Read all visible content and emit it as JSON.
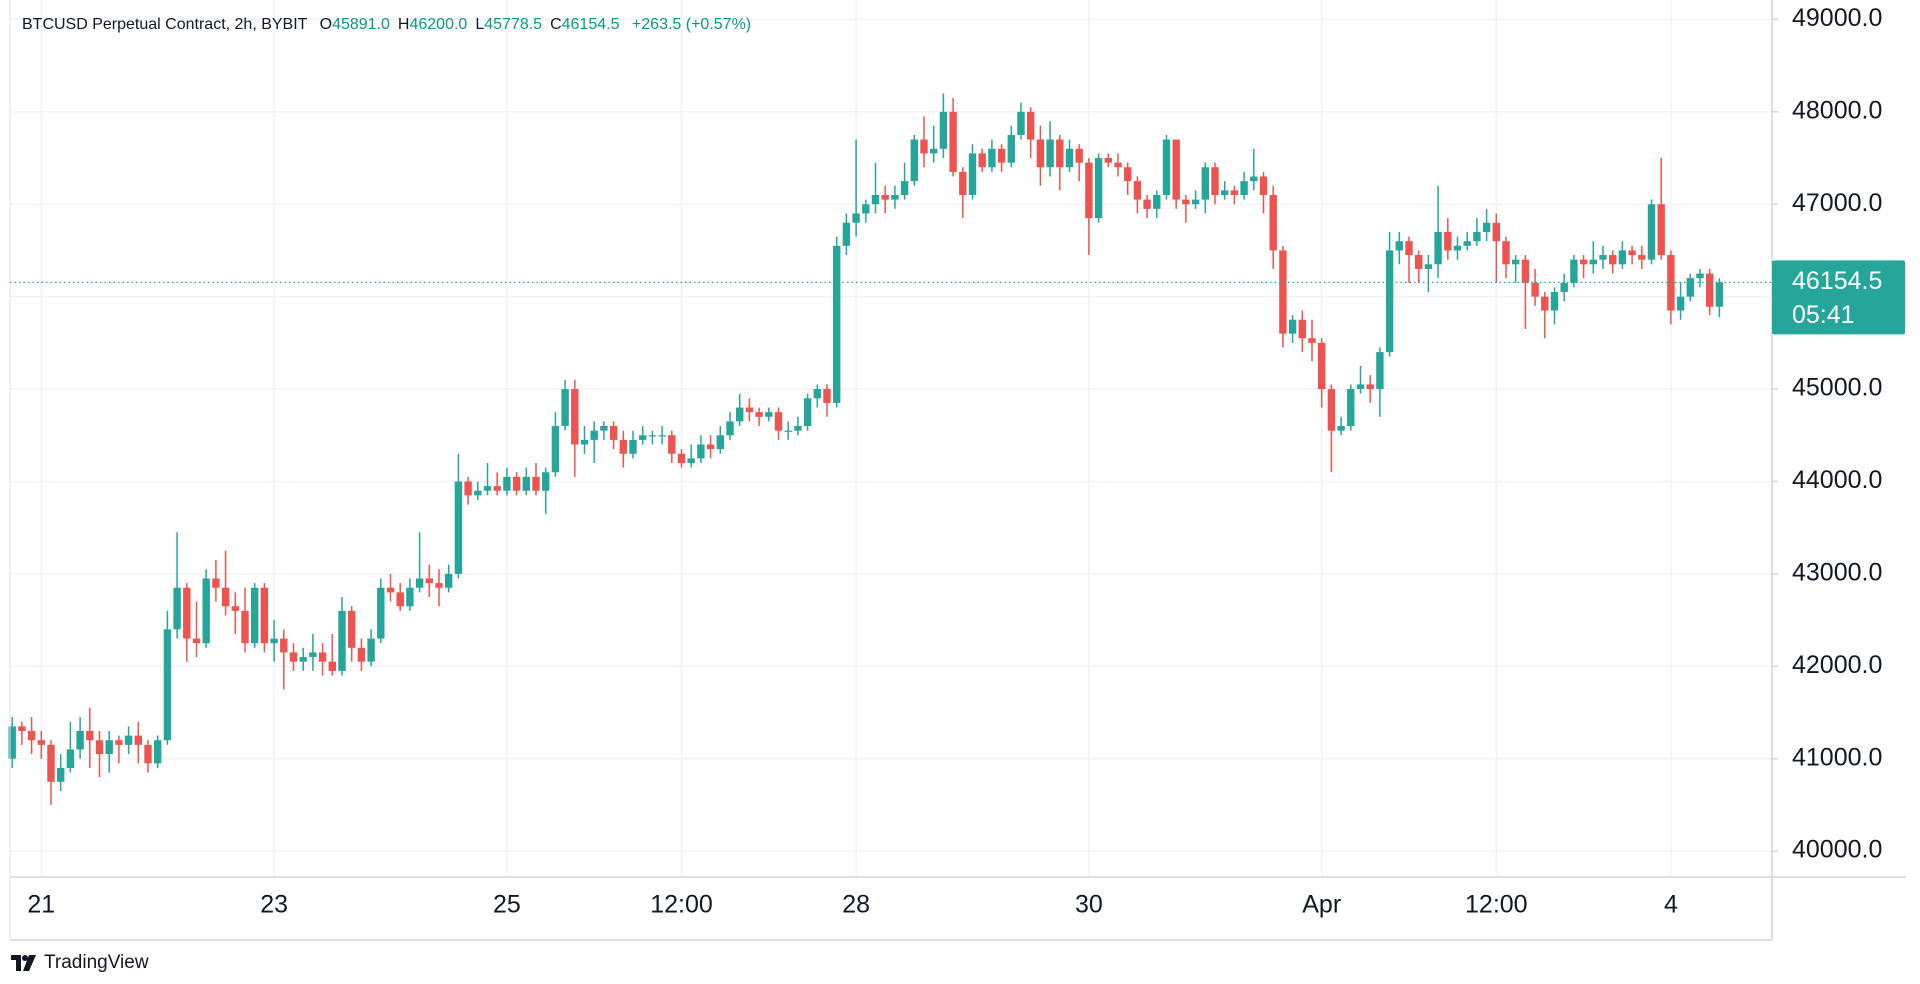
{
  "header": {
    "symbol": "BTCUSD Perpetual Contract, 2h, BYBIT",
    "ohlc": [
      {
        "key": "O",
        "text": "45891.0"
      },
      {
        "key": "H",
        "text": "46200.0"
      },
      {
        "key": "L",
        "text": "45778.5"
      },
      {
        "key": "C",
        "text": "46154.5"
      }
    ],
    "change": "+263.5 (+0.57%)"
  },
  "footer": {
    "brand": "TradingView"
  },
  "chart_data": {
    "type": "candlestick",
    "categories": [
      null,
      null,
      null,
      "21",
      null,
      null,
      null,
      null,
      null,
      null,
      null,
      null,
      null,
      null,
      null,
      null,
      null,
      null,
      null,
      null,
      null,
      null,
      null,
      null,
      null,
      null,
      null,
      "23",
      null,
      null,
      null,
      null,
      null,
      null,
      null,
      null,
      null,
      null,
      null,
      null,
      null,
      null,
      null,
      null,
      null,
      null,
      null,
      null,
      null,
      null,
      null,
      "25",
      null,
      null,
      null,
      null,
      null,
      null,
      null,
      null,
      null,
      null,
      null,
      null,
      null,
      null,
      null,
      null,
      null,
      "12:00",
      null,
      null,
      null,
      null,
      null,
      null,
      null,
      null,
      null,
      null,
      null,
      null,
      null,
      null,
      null,
      null,
      null,
      "28",
      null,
      null,
      null,
      null,
      null,
      null,
      null,
      null,
      null,
      null,
      null,
      null,
      null,
      null,
      null,
      null,
      null,
      null,
      null,
      null,
      null,
      null,
      null,
      "30",
      null,
      null,
      null,
      null,
      null,
      null,
      null,
      null,
      null,
      null,
      null,
      null,
      null,
      null,
      null,
      null,
      null,
      null,
      null,
      null,
      null,
      null,
      null,
      "Apr",
      null,
      null,
      null,
      null,
      null,
      null,
      null,
      null,
      null,
      null,
      null,
      null,
      null,
      null,
      null,
      null,
      null,
      "12:00",
      null,
      null,
      null,
      null,
      null,
      null,
      null,
      null,
      null,
      null,
      null,
      null,
      null,
      null,
      null,
      null,
      null,
      "4",
      null,
      null,
      null,
      null,
      null
    ],
    "open": [
      41000,
      41350,
      41300,
      41200,
      41150,
      40750,
      40900,
      41100,
      41300,
      41200,
      41050,
      41200,
      41150,
      41250,
      41150,
      40950,
      41200,
      42400,
      42850,
      42300,
      42250,
      42950,
      42850,
      42650,
      42600,
      42250,
      42850,
      42250,
      42300,
      42150,
      42050,
      42100,
      42150,
      42050,
      41950,
      42600,
      42200,
      42050,
      42300,
      42850,
      42800,
      42650,
      42850,
      42950,
      42900,
      42850,
      43000,
      44000,
      43850,
      43900,
      43950,
      43900,
      44050,
      43900,
      44050,
      43900,
      44100,
      44600,
      45000,
      44400,
      44450,
      44550,
      44600,
      44450,
      44300,
      44450,
      44500,
      44500,
      44500,
      44300,
      44200,
      44250,
      44400,
      44350,
      44500,
      44650,
      44800,
      44750,
      44700,
      44750,
      44550,
      44550,
      44600,
      44900,
      45000,
      44850,
      46550,
      46800,
      46900,
      47000,
      47100,
      47050,
      47100,
      47250,
      47700,
      47550,
      47600,
      48000,
      47350,
      47100,
      47550,
      47400,
      47600,
      47450,
      47750,
      48000,
      47700,
      47400,
      47700,
      47400,
      47600,
      47450,
      46850,
      47500,
      47450,
      47400,
      47250,
      47050,
      46950,
      47100,
      47700,
      47050,
      47000,
      47050,
      47400,
      47100,
      47150,
      47100,
      47250,
      47300,
      47100,
      46500,
      45600,
      45750,
      45550,
      45500,
      45000,
      44550,
      44600,
      45000,
      45050,
      45000,
      45400,
      46500,
      46600,
      46450,
      46300,
      46350,
      46700,
      46500,
      46550,
      46600,
      46700,
      46800,
      46600,
      46350,
      46400,
      46150,
      46000,
      45850,
      46050,
      46150,
      46400,
      46350,
      46400,
      46450,
      46350,
      46500,
      46450,
      46400,
      47000,
      46450,
      45850,
      46000,
      46200,
      46250,
      45891
    ],
    "high": [
      41450,
      41400,
      41450,
      41300,
      41200,
      41050,
      41400,
      41450,
      41550,
      41300,
      41300,
      41250,
      41350,
      41400,
      41200,
      41250,
      42600,
      43450,
      42900,
      42700,
      43050,
      43150,
      43250,
      42800,
      42850,
      42900,
      42900,
      42500,
      42400,
      42250,
      42200,
      42350,
      42250,
      42350,
      42750,
      42650,
      42300,
      42400,
      42950,
      43000,
      42900,
      42950,
      43450,
      43100,
      43050,
      43100,
      44300,
      44050,
      44000,
      44200,
      44100,
      44150,
      44100,
      44150,
      44200,
      44150,
      44750,
      45100,
      45100,
      44600,
      44650,
      44650,
      44650,
      44550,
      44550,
      44600,
      44550,
      44600,
      44550,
      44350,
      44400,
      44500,
      44500,
      44600,
      44750,
      44950,
      44900,
      44800,
      44800,
      44800,
      44650,
      44700,
      44950,
      45050,
      45050,
      46650,
      46900,
      47700,
      47050,
      47450,
      47200,
      47200,
      47450,
      47750,
      47950,
      47850,
      48200,
      48150,
      47400,
      47650,
      47600,
      47700,
      47650,
      47850,
      48100,
      48050,
      47850,
      47900,
      47750,
      47700,
      47650,
      47500,
      47550,
      47550,
      47550,
      47450,
      47300,
      47100,
      47150,
      47750,
      47700,
      47100,
      47150,
      47450,
      47450,
      47250,
      47200,
      47350,
      47600,
      47350,
      47200,
      46550,
      45800,
      45850,
      45750,
      45550,
      45050,
      44700,
      45050,
      45250,
      45150,
      45450,
      46700,
      46700,
      46650,
      46500,
      46450,
      47200,
      46850,
      46650,
      46700,
      46850,
      46950,
      46900,
      46650,
      46450,
      46450,
      46300,
      46050,
      46100,
      46250,
      46450,
      46450,
      46600,
      46550,
      46500,
      46600,
      46550,
      46550,
      47050,
      47500,
      46500,
      46150,
      46250,
      46300,
      46300,
      46200
    ],
    "low": [
      40900,
      41150,
      41050,
      41000,
      40500,
      40650,
      40850,
      41000,
      40900,
      40800,
      40850,
      40950,
      41050,
      40950,
      40850,
      40900,
      41150,
      42300,
      42050,
      42100,
      42200,
      42700,
      42550,
      42350,
      42150,
      42200,
      42150,
      42050,
      41750,
      41950,
      41950,
      41950,
      41900,
      41900,
      41900,
      42050,
      41950,
      42000,
      42250,
      42700,
      42600,
      42600,
      42800,
      42750,
      42650,
      42800,
      42950,
      43750,
      43800,
      43850,
      43850,
      43850,
      43850,
      43850,
      43850,
      43650,
      44050,
      44550,
      44050,
      44300,
      44200,
      44450,
      44350,
      44150,
      44250,
      44400,
      44400,
      44400,
      44200,
      44150,
      44150,
      44200,
      44250,
      44300,
      44450,
      44600,
      44650,
      44600,
      44650,
      44450,
      44450,
      44500,
      44550,
      44800,
      44700,
      44800,
      46450,
      46650,
      46800,
      46900,
      46900,
      46950,
      47050,
      47200,
      47400,
      47450,
      47500,
      47300,
      46850,
      47050,
      47350,
      47350,
      47350,
      47400,
      47700,
      47500,
      47200,
      47300,
      47150,
      47350,
      47250,
      46450,
      46800,
      47400,
      47300,
      47100,
      46900,
      46850,
      46850,
      47050,
      46950,
      46800,
      46950,
      46900,
      47000,
      47050,
      47000,
      47050,
      47150,
      46900,
      46300,
      45450,
      45500,
      45400,
      45300,
      44800,
      44100,
      44500,
      44550,
      44950,
      44850,
      44700,
      45350,
      46350,
      46150,
      46150,
      46050,
      46200,
      46400,
      46400,
      46500,
      46550,
      46600,
      46150,
      46200,
      46150,
      45650,
      45900,
      45550,
      45700,
      45950,
      46100,
      46200,
      46250,
      46300,
      46250,
      46300,
      46350,
      46300,
      46350,
      46400,
      45700,
      45750,
      45950,
      46100,
      45800,
      45778.5
    ],
    "close": [
      41350,
      41300,
      41200,
      41150,
      40750,
      40900,
      41100,
      41300,
      41200,
      41050,
      41200,
      41150,
      41250,
      41150,
      40950,
      41200,
      42400,
      42850,
      42300,
      42250,
      42950,
      42850,
      42650,
      42600,
      42250,
      42850,
      42250,
      42300,
      42150,
      42050,
      42100,
      42150,
      42050,
      41950,
      42600,
      42200,
      42050,
      42300,
      42850,
      42800,
      42650,
      42850,
      42950,
      42900,
      42850,
      43000,
      44000,
      43850,
      43900,
      43950,
      43900,
      44050,
      43900,
      44050,
      43900,
      44100,
      44600,
      45000,
      44400,
      44450,
      44550,
      44600,
      44450,
      44300,
      44450,
      44500,
      44500,
      44500,
      44300,
      44200,
      44250,
      44400,
      44350,
      44500,
      44650,
      44800,
      44750,
      44700,
      44750,
      44550,
      44550,
      44600,
      44900,
      45000,
      44850,
      46550,
      46800,
      46900,
      47000,
      47100,
      47050,
      47100,
      47250,
      47700,
      47550,
      47600,
      48000,
      47350,
      47100,
      47550,
      47400,
      47600,
      47450,
      47750,
      48000,
      47700,
      47400,
      47700,
      47400,
      47600,
      47450,
      46850,
      47500,
      47450,
      47400,
      47250,
      47050,
      46950,
      47100,
      47700,
      47050,
      47000,
      47050,
      47400,
      47100,
      47150,
      47100,
      47250,
      47300,
      47100,
      46500,
      45600,
      45750,
      45550,
      45500,
      45000,
      44550,
      44600,
      45000,
      45050,
      45000,
      45400,
      46500,
      46600,
      46450,
      46300,
      46350,
      46700,
      46500,
      46550,
      46600,
      46700,
      46800,
      46600,
      46350,
      46400,
      46150,
      46000,
      45850,
      46050,
      46150,
      46400,
      46350,
      46400,
      46450,
      46350,
      46500,
      46450,
      46400,
      47000,
      46450,
      45850,
      46000,
      46200,
      46250,
      45891,
      46154.5
    ],
    "up_color": "#26a69a",
    "down_color": "#ef5350",
    "ylim": [
      39720,
      49210
    ],
    "yticks": [
      {
        "value": 40000,
        "label": "40000.0"
      },
      {
        "value": 41000,
        "label": "41000.0"
      },
      {
        "value": 42000,
        "label": "42000.0"
      },
      {
        "value": 43000,
        "label": "43000.0"
      },
      {
        "value": 44000,
        "label": "44000.0"
      },
      {
        "value": 45000,
        "label": "45000.0"
      },
      {
        "value": 46000,
        "label": "46000.0"
      },
      {
        "value": 47000,
        "label": "47000.0"
      },
      {
        "value": 48000,
        "label": "48000.0"
      },
      {
        "value": 49000,
        "label": "49000.0"
      }
    ],
    "grid": true,
    "countdown": "05:41"
  }
}
